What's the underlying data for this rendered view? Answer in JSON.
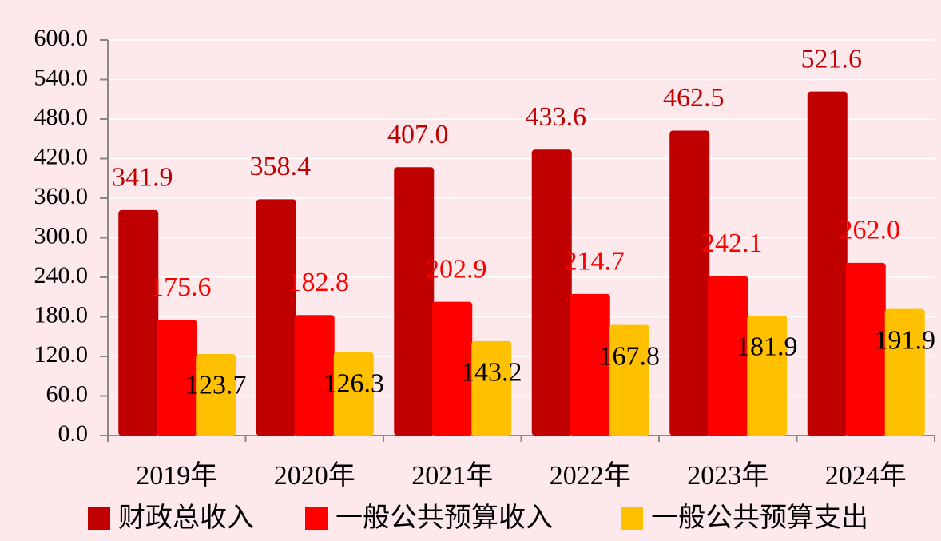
{
  "chart_data": {
    "type": "bar",
    "categories": [
      "2019年",
      "2020年",
      "2021年",
      "2022年",
      "2023年",
      "2024年"
    ],
    "series": [
      {
        "name": "财政总收入",
        "color": "#c00000",
        "label_color": "#c00000",
        "values": [
          341.9,
          358.4,
          407.0,
          433.6,
          462.5,
          521.6
        ],
        "value_labels": [
          "341.9",
          "358.4",
          "407.0",
          "433.6",
          "462.5",
          "521.6"
        ]
      },
      {
        "name": "一般公共预算收入",
        "color": "#ff0000",
        "label_color": "#ff0000",
        "values": [
          175.6,
          182.8,
          202.9,
          214.7,
          242.1,
          262.0
        ],
        "value_labels": [
          "175.6",
          "182.8",
          "202.9",
          "214.7",
          "242.1",
          "262.0"
        ]
      },
      {
        "name": "一般公共预算支出",
        "color": "#ffc000",
        "label_color": "#000000",
        "values": [
          123.7,
          126.3,
          143.2,
          167.8,
          181.9,
          191.9
        ],
        "value_labels": [
          "123.7",
          "126.3",
          "143.2",
          "167.8",
          "181.9",
          "191.9"
        ]
      }
    ],
    "ylim": [
      0,
      600
    ],
    "yticks": [
      {
        "value": 0,
        "label": "0.0"
      },
      {
        "value": 60,
        "label": "60.0"
      },
      {
        "value": 120,
        "label": "120.0"
      },
      {
        "value": 180,
        "label": "180.0"
      },
      {
        "value": 240,
        "label": "240.0"
      },
      {
        "value": 300,
        "label": "300.0"
      },
      {
        "value": 360,
        "label": "360.0"
      },
      {
        "value": 420,
        "label": "420.0"
      },
      {
        "value": 480,
        "label": "480.0"
      },
      {
        "value": 540,
        "label": "540.0"
      },
      {
        "value": 600,
        "label": "600.0"
      }
    ],
    "grid": true
  }
}
